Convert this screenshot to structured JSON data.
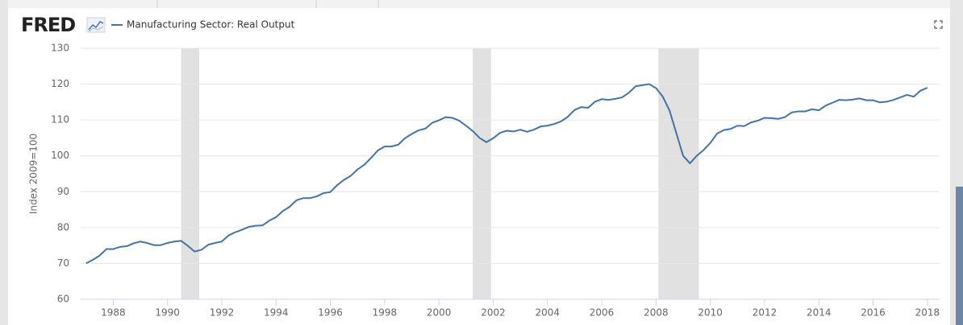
{
  "logo": "FRED",
  "chart_data": {
    "type": "line",
    "series": [
      {
        "name": "Manufacturing Sector: Real Output",
        "color": "#4572a7",
        "values": [
          70.0,
          71.0,
          72.2,
          74.0,
          74.0,
          74.6,
          74.8,
          75.6,
          76.1,
          75.7,
          75.1,
          75.1,
          75.7,
          76.1,
          76.3,
          74.9,
          73.3,
          73.8,
          75.2,
          75.7,
          76.1,
          77.8,
          78.7,
          79.4,
          80.2,
          80.5,
          80.6,
          81.9,
          82.9,
          84.6,
          85.8,
          87.6,
          88.2,
          88.2,
          88.7,
          89.6,
          89.9,
          91.8,
          93.3,
          94.4,
          96.2,
          97.5,
          99.4,
          101.5,
          102.6,
          102.6,
          103.1,
          104.9,
          106.1,
          107.1,
          107.6,
          109.2,
          109.9,
          110.8,
          110.6,
          109.8,
          108.4,
          106.9,
          105.0,
          103.8,
          104.9,
          106.4,
          107.0,
          106.8,
          107.3,
          106.7,
          107.3,
          108.2,
          108.4,
          108.9,
          109.6,
          110.9,
          112.8,
          113.6,
          113.4,
          115.1,
          115.8,
          115.6,
          115.9,
          116.3,
          117.6,
          119.4,
          119.7,
          120.0,
          118.9,
          116.5,
          112.6,
          106.3,
          100.0,
          97.9,
          100.0,
          101.6,
          103.6,
          106.2,
          107.2,
          107.5,
          108.4,
          108.3,
          109.3,
          109.8,
          110.6,
          110.5,
          110.3,
          110.8,
          112.1,
          112.4,
          112.4,
          113.0,
          112.7,
          114.0,
          114.8,
          115.6,
          115.5,
          115.7,
          116.0,
          115.5,
          115.5,
          114.9,
          115.1,
          115.6,
          116.3,
          117.0,
          116.5,
          118.2,
          119.0
        ]
      }
    ],
    "x": [
      1987,
      1987.25,
      1987.5,
      1987.75,
      1988,
      1988.25,
      1988.5,
      1988.75,
      1989,
      1989.25,
      1989.5,
      1989.75,
      1990,
      1990.25,
      1990.5,
      1990.75,
      1991,
      1991.25,
      1991.5,
      1991.75,
      1992,
      1992.25,
      1992.5,
      1992.75,
      1993,
      1993.25,
      1993.5,
      1993.75,
      1994,
      1994.25,
      1994.5,
      1994.75,
      1995,
      1995.25,
      1995.5,
      1995.75,
      1996,
      1996.25,
      1996.5,
      1996.75,
      1997,
      1997.25,
      1997.5,
      1997.75,
      1998,
      1998.25,
      1998.5,
      1998.75,
      1999,
      1999.25,
      1999.5,
      1999.75,
      2000,
      2000.25,
      2000.5,
      2000.75,
      2001,
      2001.25,
      2001.5,
      2001.75,
      2002,
      2002.25,
      2002.5,
      2002.75,
      2003,
      2003.25,
      2003.5,
      2003.75,
      2004,
      2004.25,
      2004.5,
      2004.75,
      2005,
      2005.25,
      2005.5,
      2005.75,
      2006,
      2006.25,
      2006.5,
      2006.75,
      2007,
      2007.25,
      2007.5,
      2007.75,
      2008,
      2008.25,
      2008.5,
      2008.75,
      2009,
      2009.25,
      2009.5,
      2009.75,
      2010,
      2010.25,
      2010.5,
      2010.75,
      2011,
      2011.25,
      2011.5,
      2011.75,
      2012,
      2012.25,
      2012.5,
      2012.75,
      2013,
      2013.25,
      2013.5,
      2013.75,
      2014,
      2014.25,
      2014.5,
      2014.75,
      2015,
      2015.25,
      2015.5,
      2015.75,
      2016,
      2016.25,
      2016.5,
      2016.75,
      2017,
      2017.25,
      2017.5,
      2017.75,
      2018
    ],
    "recessions": [
      [
        1990.5,
        1991.17
      ],
      [
        2001.25,
        2001.92
      ],
      [
        2008.09,
        2009.58
      ]
    ],
    "recession_color": "#e1e1e1",
    "ylabel": "Index 2009=100",
    "xlim": [
      1986.8,
      2018.45
    ],
    "ylim": [
      60,
      130
    ],
    "xticks": [
      1988,
      1990,
      1992,
      1994,
      1996,
      1998,
      2000,
      2002,
      2004,
      2006,
      2008,
      2010,
      2012,
      2014,
      2016,
      2018
    ],
    "yticks": [
      60,
      70,
      80,
      90,
      100,
      110,
      120,
      130
    ],
    "grid": true
  }
}
